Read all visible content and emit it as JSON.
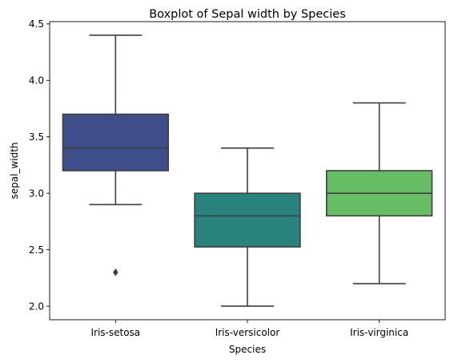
{
  "chart_data": {
    "type": "box",
    "title": "Boxplot of Sepal width by Species",
    "xlabel": "Species",
    "ylabel": "sepal_width",
    "categories": [
      "Iris-setosa",
      "Iris-versicolor",
      "Iris-virginica"
    ],
    "ylim": [
      1.88,
      4.52
    ],
    "yticks": [
      2.0,
      2.5,
      3.0,
      3.5,
      4.0,
      4.5
    ],
    "ytick_labels": [
      "2.0",
      "2.5",
      "3.0",
      "3.5",
      "4.0",
      "4.5"
    ],
    "grid": false,
    "boxes": [
      {
        "category": "Iris-setosa",
        "whisker_low": 2.9,
        "q1": 3.2,
        "median": 3.4,
        "q3": 3.7,
        "whisker_high": 4.4,
        "outliers": [
          2.3
        ],
        "color": "#3d4e8a"
      },
      {
        "category": "Iris-versicolor",
        "whisker_low": 2.0,
        "q1": 2.525,
        "median": 2.8,
        "q3": 3.0,
        "whisker_high": 3.4,
        "outliers": [],
        "color": "#29837c"
      },
      {
        "category": "Iris-virginica",
        "whisker_low": 2.2,
        "q1": 2.8,
        "median": 3.0,
        "q3": 3.2,
        "whisker_high": 3.8,
        "outliers": [],
        "color": "#66bd63"
      }
    ],
    "line_color": "#3f3f3f"
  }
}
